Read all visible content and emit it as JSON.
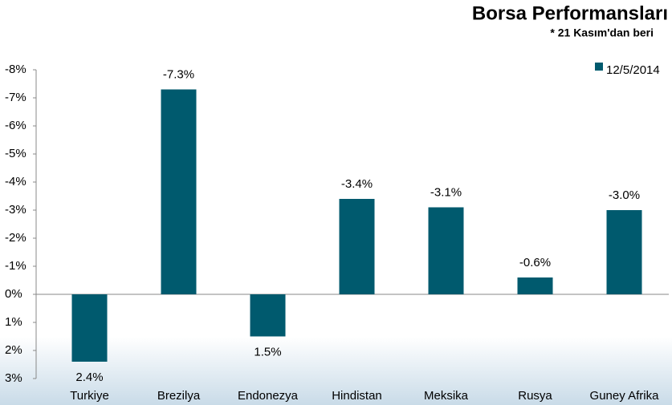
{
  "chart_data": {
    "type": "bar",
    "title": "Borsa Performansları",
    "subtitle": "* 21 Kasım'dan beri",
    "categories": [
      "Turkiye",
      "Brezilya",
      "Endonezya",
      "Hindistan",
      "Meksika",
      "Rusya",
      "Guney Afrika"
    ],
    "series": [
      {
        "name": "12/5/2014",
        "color": "#005a6e",
        "values": [
          2.4,
          -7.3,
          1.5,
          -3.4,
          -3.1,
          -0.6,
          -3.0
        ],
        "value_labels": [
          "2.4%",
          "-7.3%",
          "1.5%",
          "-3.4%",
          "-3.1%",
          "-0.6%",
          "-3.0%"
        ]
      }
    ],
    "ylim": [
      -8,
      3
    ],
    "inverted": true,
    "yticks": [
      {
        "value": -8,
        "label": "-8%"
      },
      {
        "value": -7,
        "label": "-7%"
      },
      {
        "value": -6,
        "label": "-6%"
      },
      {
        "value": -5,
        "label": "-5%"
      },
      {
        "value": -4,
        "label": "-4%"
      },
      {
        "value": -3,
        "label": "-3%"
      },
      {
        "value": -2,
        "label": "-2%"
      },
      {
        "value": -1,
        "label": "-1%"
      },
      {
        "value": 0,
        "label": "0%"
      },
      {
        "value": 1,
        "label": "1%"
      },
      {
        "value": 2,
        "label": "2%"
      },
      {
        "value": 3,
        "label": "3%"
      }
    ],
    "legend": "top-right",
    "grid": false
  }
}
